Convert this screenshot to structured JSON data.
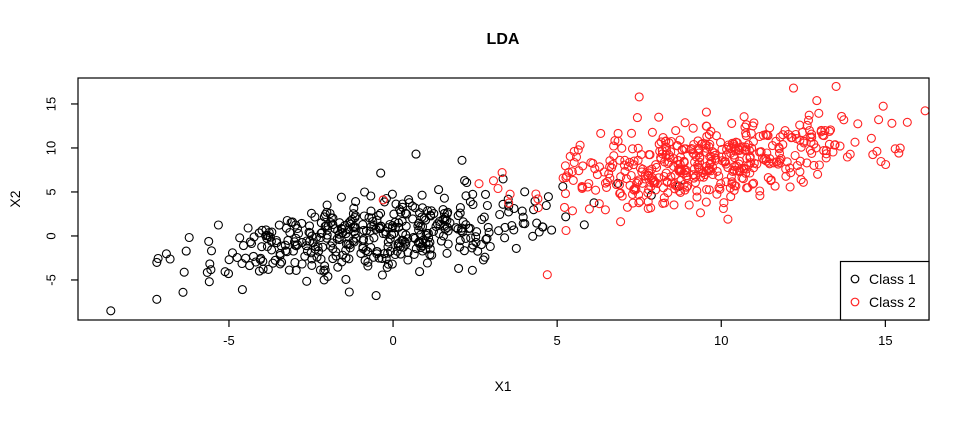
{
  "chart_data": {
    "type": "scatter",
    "title": "LDA",
    "xlabel": "X1",
    "ylabel": "X2",
    "xlim": [
      -9.6,
      16.33
    ],
    "ylim": [
      -9.55,
      17.95
    ],
    "x_ticks": [
      -5,
      0,
      5,
      10,
      15
    ],
    "y_ticks": [
      -5,
      0,
      5,
      10,
      15
    ],
    "grid": false,
    "background": "#FFFFFF",
    "box_color": "#000000",
    "marker": "open-circle",
    "marker_radius_px": 4,
    "legend": {
      "position": "bottom-right",
      "entries": [
        {
          "label": "Class 1",
          "color": "#000000"
        },
        {
          "label": "Class 2",
          "color": "#FF2222"
        }
      ]
    },
    "series": [
      {
        "name": "Class 1",
        "color": "#000000",
        "n": 430,
        "mean": [
          -0.4,
          0.2
        ],
        "sd": [
          2.5,
          2.3
        ],
        "corr": 0.45,
        "seed": 1013904223,
        "outliers": [
          [
            -8.6,
            -8.5
          ],
          [
            -7.2,
            -3.0
          ],
          [
            -7.2,
            -7.2
          ],
          [
            -6.4,
            -6.4
          ],
          [
            -5.6,
            -5.2
          ],
          [
            0.7,
            9.3
          ],
          [
            2.1,
            8.6
          ]
        ]
      },
      {
        "name": "Class 2",
        "color": "#FF2222",
        "n": 480,
        "mean": [
          9.4,
          8.2
        ],
        "sd": [
          2.4,
          2.5
        ],
        "corr": 0.5,
        "seed": 362436069,
        "outliers": [
          [
            -0.3,
            4.1
          ],
          [
            4.7,
            -4.4
          ],
          [
            7.5,
            15.8
          ],
          [
            12.2,
            16.8
          ],
          [
            13.5,
            17.0
          ],
          [
            15.2,
            12.8
          ],
          [
            15.3,
            9.9
          ]
        ]
      }
    ]
  }
}
